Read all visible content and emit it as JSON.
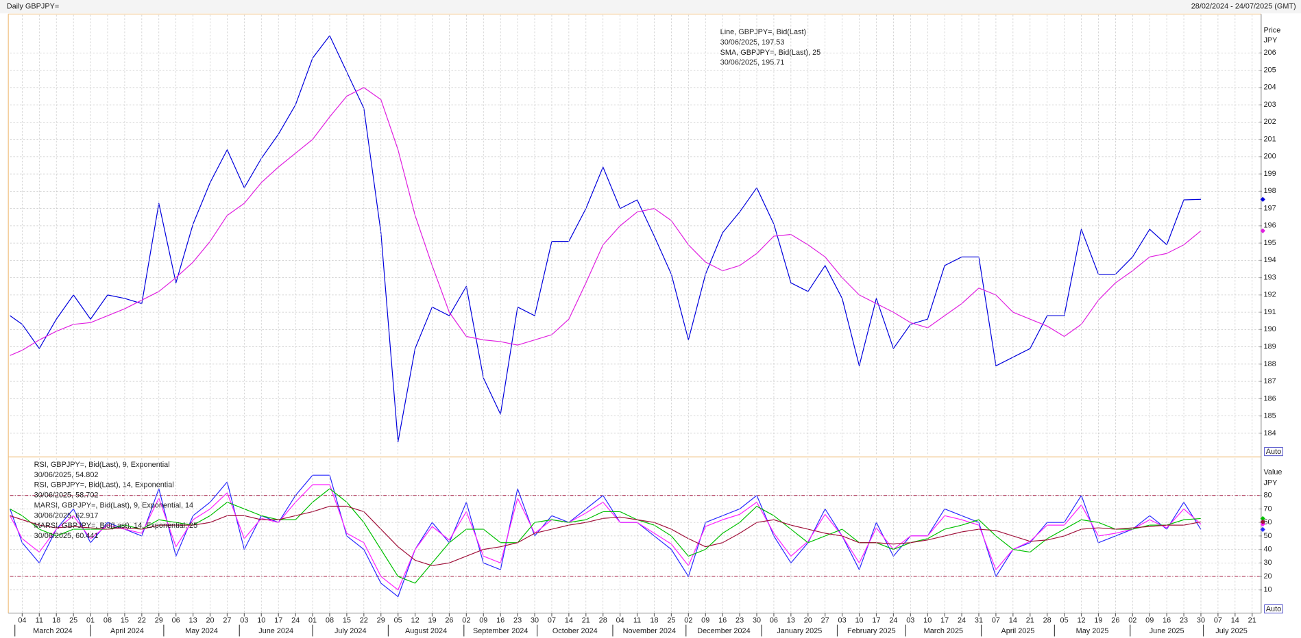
{
  "chart_data": [
    {
      "type": "line",
      "title": "Daily GBPJPY=",
      "subtitle": "28/02/2024 - 24/07/2025 (GMT)",
      "y_label": "Price",
      "y_unit": "JPY",
      "button": "Auto",
      "xlim": [
        "2024-02-28",
        "2025-07-24"
      ],
      "ylim": [
        182.7,
        208.2
      ],
      "yticks": [
        184,
        185,
        186,
        187,
        188,
        189,
        190,
        191,
        192,
        193,
        194,
        195,
        196,
        197,
        198,
        199,
        200,
        201,
        202,
        203,
        204,
        205,
        206
      ],
      "grid": true,
      "x": [
        "2024-02-28",
        "2024-03-04",
        "2024-03-11",
        "2024-03-18",
        "2024-03-25",
        "2024-04-01",
        "2024-04-08",
        "2024-04-15",
        "2024-04-22",
        "2024-04-29",
        "2024-05-06",
        "2024-05-13",
        "2024-05-20",
        "2024-05-27",
        "2024-06-03",
        "2024-06-10",
        "2024-06-17",
        "2024-06-24",
        "2024-07-01",
        "2024-07-08",
        "2024-07-15",
        "2024-07-22",
        "2024-07-29",
        "2024-08-05",
        "2024-08-12",
        "2024-08-19",
        "2024-08-26",
        "2024-09-02",
        "2024-09-09",
        "2024-09-16",
        "2024-09-23",
        "2024-09-30",
        "2024-10-07",
        "2024-10-14",
        "2024-10-21",
        "2024-10-28",
        "2024-11-04",
        "2024-11-11",
        "2024-11-18",
        "2024-11-25",
        "2024-12-02",
        "2024-12-09",
        "2024-12-16",
        "2024-12-23",
        "2024-12-30",
        "2025-01-06",
        "2025-01-13",
        "2025-01-20",
        "2025-01-27",
        "2025-02-03",
        "2025-02-10",
        "2025-02-17",
        "2025-02-24",
        "2025-03-03",
        "2025-03-10",
        "2025-03-17",
        "2025-03-24",
        "2025-03-31",
        "2025-04-07",
        "2025-04-14",
        "2025-04-21",
        "2025-04-28",
        "2025-05-05",
        "2025-05-12",
        "2025-05-19",
        "2025-05-26",
        "2025-06-02",
        "2025-06-09",
        "2025-06-16",
        "2025-06-23",
        "2025-06-30"
      ],
      "series": [
        {
          "name": "Line, GBPJPY=, Bid(Last)",
          "last_label": "30/06/2025, 197.53",
          "color": "#0000dd",
          "values": [
            190.8,
            190.3,
            188.9,
            190.6,
            192,
            190.6,
            192,
            191.8,
            191.5,
            197.3,
            192.7,
            196.1,
            198.5,
            200.4,
            198.2,
            199.9,
            201.3,
            203,
            205.7,
            207,
            204.9,
            202.8,
            195.6,
            183.5,
            188.9,
            191.3,
            190.8,
            192.5,
            187.2,
            185.1,
            191.3,
            190.8,
            195.1,
            195.1,
            197,
            199.4,
            197,
            197.5,
            195.4,
            193.2,
            189.4,
            193.2,
            195.6,
            196.8,
            198.2,
            196.1,
            192.7,
            192.2,
            193.7,
            191.8,
            187.9,
            191.8,
            188.9,
            190.3,
            190.6,
            193.7,
            194.2,
            194.2,
            187.9,
            188.4,
            188.9,
            190.8,
            190.8,
            195.8,
            193.2,
            193.2,
            194.2,
            195.8,
            194.9,
            197.5,
            197.53
          ]
        },
        {
          "name": "SMA, GBPJPY=, Bid(Last),  25",
          "last_label": "30/06/2025, 195.71",
          "color": "#e020e0",
          "values": [
            188.5,
            188.8,
            189.4,
            189.9,
            190.3,
            190.4,
            190.8,
            191.2,
            191.7,
            192.2,
            193,
            193.9,
            195.1,
            196.6,
            197.3,
            198.5,
            199.4,
            200.2,
            201,
            202.3,
            203.5,
            204,
            203.3,
            200.4,
            196.6,
            193.7,
            191,
            189.6,
            189.4,
            189.3,
            189.1,
            189.4,
            189.7,
            190.6,
            192.7,
            194.9,
            196,
            196.8,
            197,
            196.3,
            194.9,
            193.9,
            193.4,
            193.7,
            194.4,
            195.4,
            195.5,
            194.9,
            194.2,
            193,
            192,
            191.5,
            191,
            190.4,
            190.1,
            190.8,
            191.5,
            192.4,
            192,
            191,
            190.6,
            190.2,
            189.6,
            190.3,
            191.7,
            192.7,
            193.4,
            194.2,
            194.4,
            194.9,
            195.71
          ]
        }
      ]
    },
    {
      "type": "line",
      "y_label": "Value",
      "y_unit": "JPY",
      "button": "Auto",
      "xlim": [
        "2024-02-28",
        "2025-07-24"
      ],
      "ylim": [
        -7.2,
        107.6
      ],
      "yticks": [
        10,
        20,
        30,
        40,
        50,
        60,
        70,
        80
      ],
      "grid": true,
      "levels": [
        20,
        80
      ],
      "level_color": "#a0103a",
      "x": [
        "2024-02-28",
        "2024-03-04",
        "2024-03-11",
        "2024-03-18",
        "2024-03-25",
        "2024-04-01",
        "2024-04-08",
        "2024-04-15",
        "2024-04-22",
        "2024-04-29",
        "2024-05-06",
        "2024-05-13",
        "2024-05-20",
        "2024-05-27",
        "2024-06-03",
        "2024-06-10",
        "2024-06-17",
        "2024-06-24",
        "2024-07-01",
        "2024-07-08",
        "2024-07-15",
        "2024-07-22",
        "2024-07-29",
        "2024-08-05",
        "2024-08-12",
        "2024-08-19",
        "2024-08-26",
        "2024-09-02",
        "2024-09-09",
        "2024-09-16",
        "2024-09-23",
        "2024-09-30",
        "2024-10-07",
        "2024-10-14",
        "2024-10-21",
        "2024-10-28",
        "2024-11-04",
        "2024-11-11",
        "2024-11-18",
        "2024-11-25",
        "2024-12-02",
        "2024-12-09",
        "2024-12-16",
        "2024-12-23",
        "2024-12-30",
        "2025-01-06",
        "2025-01-13",
        "2025-01-20",
        "2025-01-27",
        "2025-02-03",
        "2025-02-10",
        "2025-02-17",
        "2025-02-24",
        "2025-03-03",
        "2025-03-10",
        "2025-03-17",
        "2025-03-24",
        "2025-03-31",
        "2025-04-07",
        "2025-04-14",
        "2025-04-21",
        "2025-04-28",
        "2025-05-05",
        "2025-05-12",
        "2025-05-19",
        "2025-05-26",
        "2025-06-02",
        "2025-06-09",
        "2025-06-16",
        "2025-06-23",
        "2025-06-30"
      ],
      "series": [
        {
          "name": "RSI, GBPJPY=, Bid(Last),  9, Exponential",
          "last_label": "30/06/2025, 54.802",
          "color": "#2a2aff",
          "values": [
            70,
            45,
            30,
            55,
            70,
            45,
            60,
            55,
            50,
            85,
            35,
            65,
            75,
            90,
            40,
            65,
            60,
            80,
            95,
            95,
            50,
            40,
            15,
            5,
            40,
            60,
            45,
            75,
            30,
            25,
            85,
            50,
            65,
            60,
            70,
            80,
            60,
            60,
            50,
            40,
            20,
            60,
            65,
            70,
            80,
            50,
            30,
            45,
            70,
            50,
            25,
            60,
            35,
            50,
            50,
            70,
            65,
            60,
            20,
            40,
            45,
            60,
            60,
            80,
            45,
            50,
            55,
            65,
            55,
            75,
            54.802
          ]
        },
        {
          "name": "RSI, GBPJPY=, Bid(Last),  14, Exponential",
          "last_label": "30/06/2025, 58.702",
          "color": "#ff20ff",
          "values": [
            65,
            48,
            38,
            55,
            65,
            48,
            58,
            55,
            52,
            78,
            42,
            62,
            70,
            82,
            48,
            63,
            60,
            75,
            88,
            88,
            52,
            45,
            20,
            10,
            40,
            57,
            47,
            68,
            35,
            30,
            78,
            52,
            62,
            60,
            67,
            75,
            60,
            60,
            52,
            44,
            28,
            57,
            62,
            66,
            75,
            52,
            35,
            46,
            66,
            50,
            30,
            56,
            40,
            50,
            50,
            65,
            62,
            58,
            25,
            40,
            46,
            58,
            58,
            73,
            50,
            52,
            55,
            62,
            56,
            70,
            58.702
          ]
        },
        {
          "name": "MARSI, GBPJPY=, Bid(Last),  9, Exponential, 14",
          "last_label": "30/06/2025, 62.917",
          "color": "#00c000",
          "values": [
            70,
            65,
            55,
            50,
            55,
            55,
            55,
            58,
            55,
            62,
            60,
            58,
            65,
            75,
            70,
            65,
            62,
            62,
            75,
            85,
            75,
            60,
            40,
            20,
            15,
            30,
            45,
            55,
            55,
            45,
            45,
            60,
            62,
            60,
            62,
            68,
            68,
            62,
            58,
            50,
            35,
            40,
            52,
            60,
            72,
            65,
            55,
            45,
            50,
            55,
            45,
            45,
            40,
            45,
            48,
            55,
            58,
            62,
            50,
            40,
            38,
            48,
            55,
            62,
            60,
            55,
            55,
            58,
            58,
            62,
            62.917
          ]
        },
        {
          "name": "MARSI, GBPJPY=, Bid(Last),  14, Exponential, 25",
          "last_label": "30/06/2025, 60.441",
          "color": "#a0103a",
          "values": [
            65,
            62,
            58,
            56,
            57,
            56,
            55,
            56,
            55,
            58,
            58,
            58,
            60,
            65,
            65,
            62,
            62,
            65,
            68,
            72,
            72,
            68,
            55,
            42,
            32,
            28,
            30,
            35,
            40,
            42,
            45,
            52,
            55,
            58,
            60,
            63,
            64,
            62,
            60,
            55,
            48,
            42,
            45,
            52,
            60,
            62,
            58,
            55,
            52,
            50,
            45,
            45,
            44,
            45,
            47,
            50,
            53,
            55,
            54,
            50,
            46,
            47,
            50,
            55,
            56,
            55,
            56,
            57,
            58,
            58,
            60.441
          ]
        }
      ],
      "xticks": [
        {
          "value": "2024-03-04",
          "label": "04"
        },
        {
          "value": "2024-03-11",
          "label": "11"
        },
        {
          "value": "2024-03-18",
          "label": "18"
        },
        {
          "value": "2024-03-25",
          "label": "25"
        },
        {
          "value": "2024-04-01",
          "label": "01"
        },
        {
          "value": "2024-04-08",
          "label": "08"
        },
        {
          "value": "2024-04-15",
          "label": "15"
        },
        {
          "value": "2024-04-22",
          "label": "22"
        },
        {
          "value": "2024-04-29",
          "label": "29"
        },
        {
          "value": "2024-05-06",
          "label": "06"
        },
        {
          "value": "2024-05-13",
          "label": "13"
        },
        {
          "value": "2024-05-20",
          "label": "20"
        },
        {
          "value": "2024-05-27",
          "label": "27"
        },
        {
          "value": "2024-06-03",
          "label": "03"
        },
        {
          "value": "2024-06-10",
          "label": "10"
        },
        {
          "value": "2024-06-17",
          "label": "17"
        },
        {
          "value": "2024-06-24",
          "label": "24"
        },
        {
          "value": "2024-07-01",
          "label": "01"
        },
        {
          "value": "2024-07-08",
          "label": "08"
        },
        {
          "value": "2024-07-15",
          "label": "15"
        },
        {
          "value": "2024-07-22",
          "label": "22"
        },
        {
          "value": "2024-07-29",
          "label": "29"
        },
        {
          "value": "2024-08-05",
          "label": "05"
        },
        {
          "value": "2024-08-12",
          "label": "12"
        },
        {
          "value": "2024-08-19",
          "label": "19"
        },
        {
          "value": "2024-08-26",
          "label": "26"
        },
        {
          "value": "2024-09-02",
          "label": "02"
        },
        {
          "value": "2024-09-09",
          "label": "09"
        },
        {
          "value": "2024-09-16",
          "label": "16"
        },
        {
          "value": "2024-09-23",
          "label": "23"
        },
        {
          "value": "2024-09-30",
          "label": "30"
        },
        {
          "value": "2024-10-07",
          "label": "07"
        },
        {
          "value": "2024-10-14",
          "label": "14"
        },
        {
          "value": "2024-10-21",
          "label": "21"
        },
        {
          "value": "2024-10-28",
          "label": "28"
        },
        {
          "value": "2024-11-04",
          "label": "04"
        },
        {
          "value": "2024-11-11",
          "label": "11"
        },
        {
          "value": "2024-11-18",
          "label": "18"
        },
        {
          "value": "2024-11-25",
          "label": "25"
        },
        {
          "value": "2024-12-02",
          "label": "02"
        },
        {
          "value": "2024-12-09",
          "label": "09"
        },
        {
          "value": "2024-12-16",
          "label": "16"
        },
        {
          "value": "2024-12-23",
          "label": "23"
        },
        {
          "value": "2024-12-30",
          "label": "30"
        },
        {
          "value": "2025-01-06",
          "label": "06"
        },
        {
          "value": "2025-01-13",
          "label": "13"
        },
        {
          "value": "2025-01-20",
          "label": "20"
        },
        {
          "value": "2025-01-27",
          "label": "27"
        },
        {
          "value": "2025-02-03",
          "label": "03"
        },
        {
          "value": "2025-02-10",
          "label": "10"
        },
        {
          "value": "2025-02-17",
          "label": "17"
        },
        {
          "value": "2025-02-24",
          "label": "24"
        },
        {
          "value": "2025-03-03",
          "label": "03"
        },
        {
          "value": "2025-03-10",
          "label": "10"
        },
        {
          "value": "2025-03-17",
          "label": "17"
        },
        {
          "value": "2025-03-24",
          "label": "24"
        },
        {
          "value": "2025-03-31",
          "label": "31"
        },
        {
          "value": "2025-04-07",
          "label": "07"
        },
        {
          "value": "2025-04-14",
          "label": "14"
        },
        {
          "value": "2025-04-21",
          "label": "21"
        },
        {
          "value": "2025-04-28",
          "label": "28"
        },
        {
          "value": "2025-05-05",
          "label": "05"
        },
        {
          "value": "2025-05-12",
          "label": "12"
        },
        {
          "value": "2025-05-19",
          "label": "19"
        },
        {
          "value": "2025-05-26",
          "label": "26"
        },
        {
          "value": "2025-06-02",
          "label": "02"
        },
        {
          "value": "2025-06-09",
          "label": "09"
        },
        {
          "value": "2025-06-16",
          "label": "16"
        },
        {
          "value": "2025-06-23",
          "label": "23"
        },
        {
          "value": "2025-06-30",
          "label": "30"
        },
        {
          "value": "2025-07-07",
          "label": "07"
        },
        {
          "value": "2025-07-14",
          "label": "14"
        },
        {
          "value": "2025-07-21",
          "label": "21"
        }
      ],
      "month_labels": [
        "March 2024",
        "April 2024",
        "May 2024",
        "June 2024",
        "July 2024",
        "August 2024",
        "September 2024",
        "October 2024",
        "November 2024",
        "December 2024",
        "January 2025",
        "February 2025",
        "March 2025",
        "April 2025",
        "May 2025",
        "June 2025",
        "July 2025"
      ]
    }
  ]
}
